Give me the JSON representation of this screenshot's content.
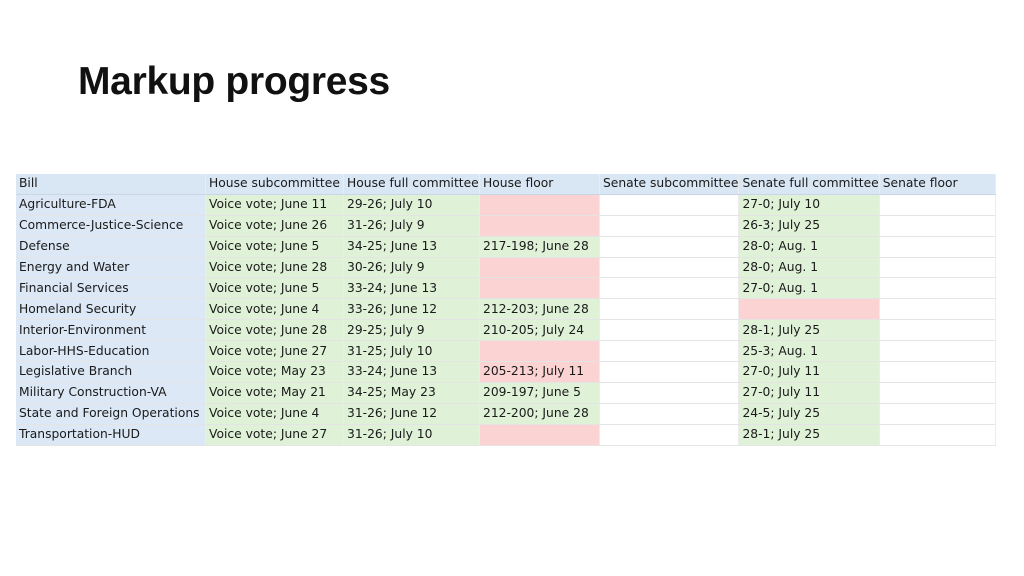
{
  "slide": {
    "title": "Markup progress"
  },
  "table": {
    "headers": [
      "Bill",
      "House subcommittee",
      "House full committee",
      "House floor",
      "Senate subcommittee",
      "Senate full committee",
      "Senate floor"
    ],
    "status_colors": {
      "complete": "#dff2d8",
      "failed_or_pending": "#fcd3d3",
      "none": "#ffffff",
      "bill_column": "#dce8f6"
    },
    "rows": [
      {
        "bill": "Agriculture-FDA",
        "cells": [
          {
            "text": "Voice vote; June 11",
            "status": "green"
          },
          {
            "text": "29-26; July 10",
            "status": "green"
          },
          {
            "text": "",
            "status": "red"
          },
          {
            "text": "",
            "status": "blank"
          },
          {
            "text": "27-0; July 10",
            "status": "green"
          },
          {
            "text": "",
            "status": "blank"
          }
        ]
      },
      {
        "bill": "Commerce-Justice-Science",
        "cells": [
          {
            "text": "Voice vote; June 26",
            "status": "green"
          },
          {
            "text": "31-26; July 9",
            "status": "green"
          },
          {
            "text": "",
            "status": "red"
          },
          {
            "text": "",
            "status": "blank"
          },
          {
            "text": "26-3; July 25",
            "status": "green"
          },
          {
            "text": "",
            "status": "blank"
          }
        ]
      },
      {
        "bill": "Defense",
        "cells": [
          {
            "text": "Voice vote; June 5",
            "status": "green"
          },
          {
            "text": "34-25; June 13",
            "status": "green"
          },
          {
            "text": "217-198; June 28",
            "status": "green"
          },
          {
            "text": "",
            "status": "blank"
          },
          {
            "text": "28-0; Aug. 1",
            "status": "green"
          },
          {
            "text": "",
            "status": "blank"
          }
        ]
      },
      {
        "bill": "Energy and Water",
        "cells": [
          {
            "text": "Voice vote; June 28",
            "status": "green"
          },
          {
            "text": "30-26; July 9",
            "status": "green"
          },
          {
            "text": "",
            "status": "red"
          },
          {
            "text": "",
            "status": "blank"
          },
          {
            "text": "28-0; Aug. 1",
            "status": "green"
          },
          {
            "text": "",
            "status": "blank"
          }
        ]
      },
      {
        "bill": "Financial Services",
        "cells": [
          {
            "text": "Voice vote; June 5",
            "status": "green"
          },
          {
            "text": "33-24; June 13",
            "status": "green"
          },
          {
            "text": "",
            "status": "red"
          },
          {
            "text": "",
            "status": "blank"
          },
          {
            "text": "27-0; Aug. 1",
            "status": "green"
          },
          {
            "text": "",
            "status": "blank"
          }
        ]
      },
      {
        "bill": "Homeland Security",
        "cells": [
          {
            "text": "Voice vote; June 4",
            "status": "green"
          },
          {
            "text": "33-26; June 12",
            "status": "green"
          },
          {
            "text": "212-203; June 28",
            "status": "green"
          },
          {
            "text": "",
            "status": "blank"
          },
          {
            "text": "",
            "status": "red"
          },
          {
            "text": "",
            "status": "blank"
          }
        ]
      },
      {
        "bill": "Interior-Environment",
        "cells": [
          {
            "text": "Voice vote; June 28",
            "status": "green"
          },
          {
            "text": "29-25; July 9",
            "status": "green"
          },
          {
            "text": "210-205; July 24",
            "status": "green"
          },
          {
            "text": "",
            "status": "blank"
          },
          {
            "text": "28-1; July 25",
            "status": "green"
          },
          {
            "text": "",
            "status": "blank"
          }
        ]
      },
      {
        "bill": "Labor-HHS-Education",
        "cells": [
          {
            "text": "Voice vote; June 27",
            "status": "green"
          },
          {
            "text": "31-25; July 10",
            "status": "green"
          },
          {
            "text": "",
            "status": "red"
          },
          {
            "text": "",
            "status": "blank"
          },
          {
            "text": "25-3; Aug. 1",
            "status": "green"
          },
          {
            "text": "",
            "status": "blank"
          }
        ]
      },
      {
        "bill": "Legislative Branch",
        "cells": [
          {
            "text": "Voice vote; May 23",
            "status": "green"
          },
          {
            "text": "33-24; June 13",
            "status": "green"
          },
          {
            "text": "205-213; July 11",
            "status": "red"
          },
          {
            "text": "",
            "status": "blank"
          },
          {
            "text": "27-0; July 11",
            "status": "green"
          },
          {
            "text": "",
            "status": "blank"
          }
        ]
      },
      {
        "bill": "Military Construction-VA",
        "cells": [
          {
            "text": "Voice vote; May 21",
            "status": "green"
          },
          {
            "text": "34-25; May 23",
            "status": "green"
          },
          {
            "text": "209-197; June 5",
            "status": "green"
          },
          {
            "text": "",
            "status": "blank"
          },
          {
            "text": "27-0; July 11",
            "status": "green"
          },
          {
            "text": "",
            "status": "blank"
          }
        ]
      },
      {
        "bill": "State and Foreign Operations",
        "cells": [
          {
            "text": "Voice vote; June 4",
            "status": "green"
          },
          {
            "text": "31-26; June 12",
            "status": "green"
          },
          {
            "text": "212-200; June 28",
            "status": "green"
          },
          {
            "text": "",
            "status": "blank"
          },
          {
            "text": "24-5; July 25",
            "status": "green"
          },
          {
            "text": "",
            "status": "blank"
          }
        ]
      },
      {
        "bill": "Transportation-HUD",
        "cells": [
          {
            "text": "Voice vote; June 27",
            "status": "green"
          },
          {
            "text": "31-26; July 10",
            "status": "green"
          },
          {
            "text": "",
            "status": "red"
          },
          {
            "text": "",
            "status": "blank"
          },
          {
            "text": "28-1; July 25",
            "status": "green"
          },
          {
            "text": "",
            "status": "blank"
          }
        ]
      }
    ]
  }
}
